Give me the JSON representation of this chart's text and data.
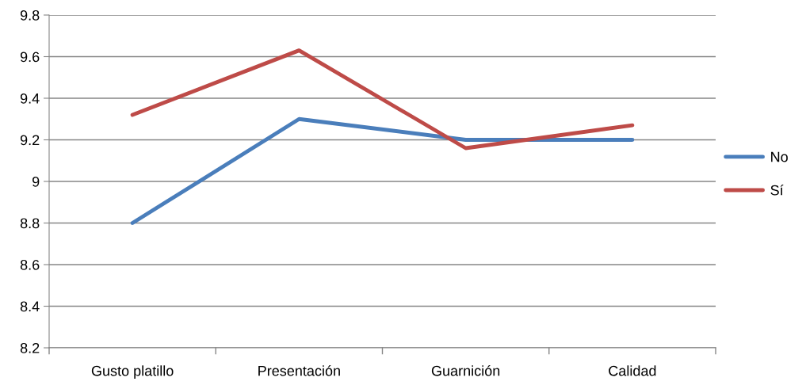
{
  "chart_data": {
    "type": "line",
    "categories": [
      "Gusto platillo",
      "Presentación",
      "Guarnición",
      "Calidad"
    ],
    "series": [
      {
        "name": "No",
        "color": "#4a7ebb",
        "values": [
          8.8,
          9.3,
          9.2,
          9.2
        ]
      },
      {
        "name": "Sí",
        "color": "#be4b48",
        "values": [
          9.32,
          9.63,
          9.16,
          9.27
        ]
      }
    ],
    "ylim": [
      8.2,
      9.8
    ],
    "yticks": [
      8.2,
      8.4,
      8.6,
      8.8,
      9,
      9.2,
      9.4,
      9.6,
      9.8
    ],
    "grid": "y",
    "legend": "right",
    "marker": "none",
    "line_style": "solid"
  }
}
